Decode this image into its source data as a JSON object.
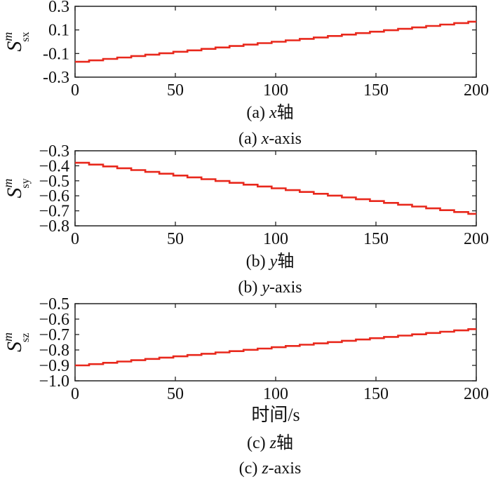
{
  "chart_data": [
    {
      "type": "line",
      "panel": "a",
      "ylabel": {
        "main": "S",
        "sup": "m",
        "sub": "sx"
      },
      "xlim": [
        0,
        200
      ],
      "ylim": [
        -0.3,
        0.3
      ],
      "xticks": [
        "0",
        "50",
        "100",
        "150",
        "200"
      ],
      "yticks": [
        "0.3",
        "0.1",
        "-0.1",
        "-0.3"
      ],
      "xlabel": "",
      "caption_cn": {
        "prefix": "(a) ",
        "var": "x",
        "word": "轴"
      },
      "caption_en": {
        "prefix": "(a) ",
        "var": "x",
        "word": "-axis"
      },
      "series": [
        {
          "color": "#e8281c",
          "step": 7,
          "x": [
            0,
            200
          ],
          "y": [
            -0.17,
            0.17
          ]
        }
      ]
    },
    {
      "type": "line",
      "panel": "b",
      "ylabel": {
        "main": "S",
        "sup": "m",
        "sub": "sy"
      },
      "xlim": [
        0,
        200
      ],
      "ylim": [
        -0.8,
        -0.3
      ],
      "xticks": [
        "0",
        "50",
        "100",
        "150",
        "200"
      ],
      "yticks": [
        "−0.3",
        "−0.4",
        "−0.5",
        "−0.6",
        "−0.7",
        "−0.8"
      ],
      "xlabel": "",
      "caption_cn": {
        "prefix": "(b) ",
        "var": "y",
        "word": "轴"
      },
      "caption_en": {
        "prefix": "(b) ",
        "var": "y",
        "word": "-axis"
      },
      "series": [
        {
          "color": "#e8281c",
          "step": 7,
          "x": [
            0,
            200
          ],
          "y": [
            -0.38,
            -0.72
          ]
        }
      ]
    },
    {
      "type": "line",
      "panel": "c",
      "ylabel": {
        "main": "S",
        "sup": "m",
        "sub": "sz"
      },
      "xlim": [
        0,
        200
      ],
      "ylim": [
        -1.0,
        -0.5
      ],
      "xticks": [
        "0",
        "50",
        "100",
        "150",
        "200"
      ],
      "yticks": [
        "−0.5",
        "−0.6",
        "−0.7",
        "−0.8",
        "−0.9",
        "−1.0"
      ],
      "xlabel": "时间/s",
      "caption_cn": {
        "prefix": "(c) ",
        "var": "z",
        "word": "轴"
      },
      "caption_en": {
        "prefix": "(c) ",
        "var": "z",
        "word": "-axis"
      },
      "series": [
        {
          "color": "#e8281c",
          "step": 7,
          "x": [
            0,
            200
          ],
          "y": [
            -0.9,
            -0.665
          ]
        }
      ]
    }
  ]
}
